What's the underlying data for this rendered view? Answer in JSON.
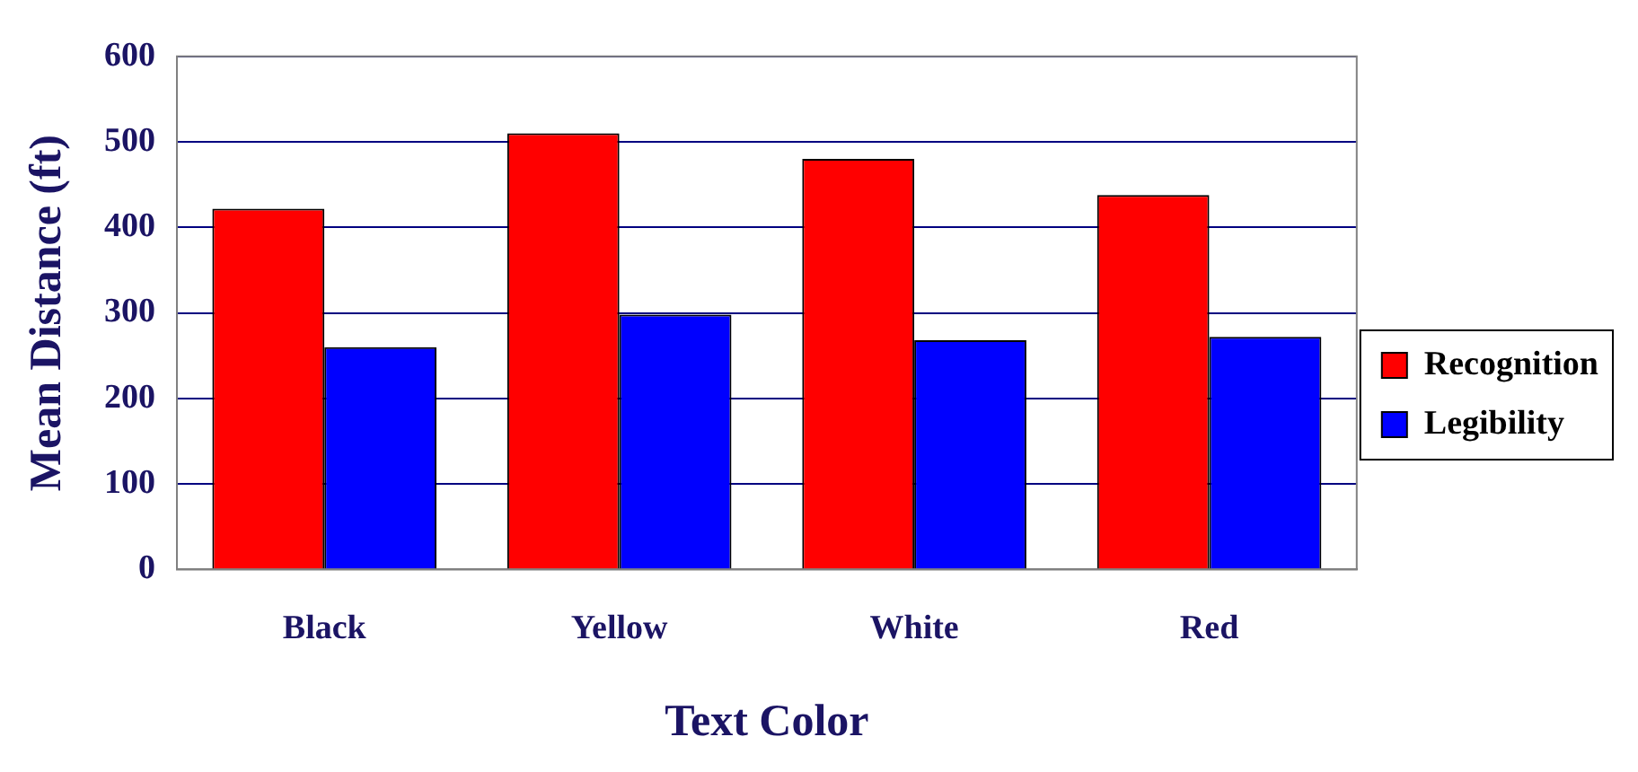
{
  "chart_data": {
    "type": "bar",
    "xlabel": "Text Color",
    "ylabel": "Mean Distance (ft)",
    "categories": [
      "Black",
      "Yellow",
      "White",
      "Red"
    ],
    "series": [
      {
        "name": "Recognition",
        "color": "#ff0000",
        "values": [
          422,
          510,
          480,
          438
        ]
      },
      {
        "name": "Legibility",
        "color": "#0000ff",
        "values": [
          260,
          298,
          268,
          272
        ]
      }
    ],
    "ylim": [
      0,
      600
    ],
    "yticks": [
      0,
      100,
      200,
      300,
      400,
      500,
      600
    ],
    "grid": "y",
    "legend": "right"
  }
}
